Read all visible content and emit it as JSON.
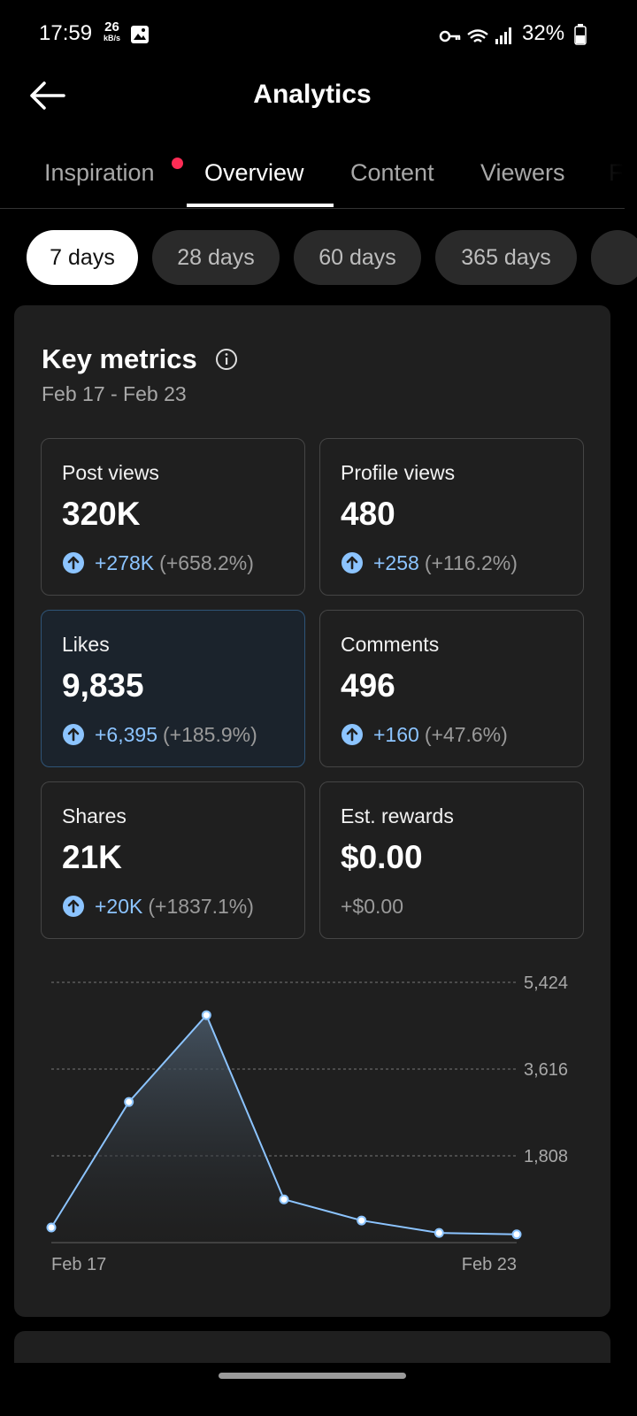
{
  "status_bar": {
    "time": "17:59",
    "speed": "26",
    "speed_unit": "kB/s",
    "battery": "32%"
  },
  "header": {
    "title": "Analytics"
  },
  "tabs": [
    "Inspiration",
    "Overview",
    "Content",
    "Viewers",
    "F"
  ],
  "periods": [
    "7 days",
    "28 days",
    "60 days",
    "365 days"
  ],
  "key_metrics": {
    "title": "Key metrics",
    "date_range": "Feb 17 - Feb 23",
    "metrics": [
      {
        "label": "Post views",
        "value": "320K",
        "change": "+278K",
        "percent": "(+658.2%)"
      },
      {
        "label": "Profile views",
        "value": "480",
        "change": "+258",
        "percent": "(+116.2%)"
      },
      {
        "label": "Likes",
        "value": "9,835",
        "change": "+6,395",
        "percent": "(+185.9%)"
      },
      {
        "label": "Comments",
        "value": "496",
        "change": "+160",
        "percent": "(+47.6%)"
      },
      {
        "label": "Shares",
        "value": "21K",
        "change": "+20K",
        "percent": "(+1837.1%)"
      },
      {
        "label": "Est. rewards",
        "value": "$0.00",
        "change": "+$0.00"
      }
    ]
  },
  "chart_data": {
    "type": "line",
    "categories": [
      "Feb 17",
      null,
      null,
      null,
      null,
      null,
      "Feb 23"
    ],
    "values": [
      314,
      2930,
      4740,
      900,
      460,
      200,
      170
    ],
    "color": "#8cc4ff",
    "ylim": [
      0,
      5424
    ],
    "yticks": [
      {
        "value": 1808,
        "label": "1,808"
      },
      {
        "value": 3616,
        "label": "3,616"
      },
      {
        "value": 5424,
        "label": "5,424"
      }
    ],
    "grid": true
  }
}
